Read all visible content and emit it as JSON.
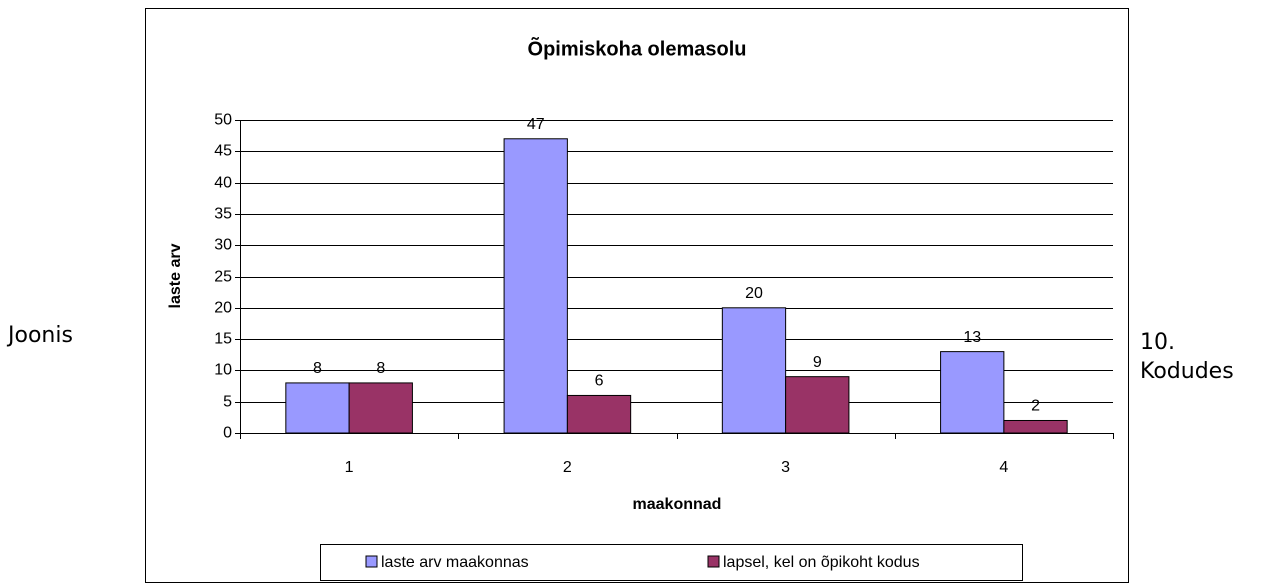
{
  "document": {
    "left_text": "Joonis",
    "right_text": [
      "10.",
      "Kodudes"
    ]
  },
  "chart_data": {
    "type": "bar",
    "title": "Õpimiskoha olemasolu",
    "x_label": "maakonnad",
    "y_label": "laste arv",
    "categories": [
      "1",
      "2",
      "3",
      "4"
    ],
    "series": [
      {
        "name": "laste arv maakonnas",
        "color": "#9999ff",
        "values": [
          8,
          47,
          20,
          13
        ]
      },
      {
        "name": "lapsel, kel on õpikoht kodus",
        "color": "#993366",
        "values": [
          8,
          6,
          9,
          2
        ]
      }
    ],
    "ylim": [
      0,
      50
    ],
    "yticks": [
      0,
      5,
      10,
      15,
      20,
      25,
      30,
      35,
      40,
      45,
      50
    ],
    "grid": true,
    "legend": "bottom"
  }
}
